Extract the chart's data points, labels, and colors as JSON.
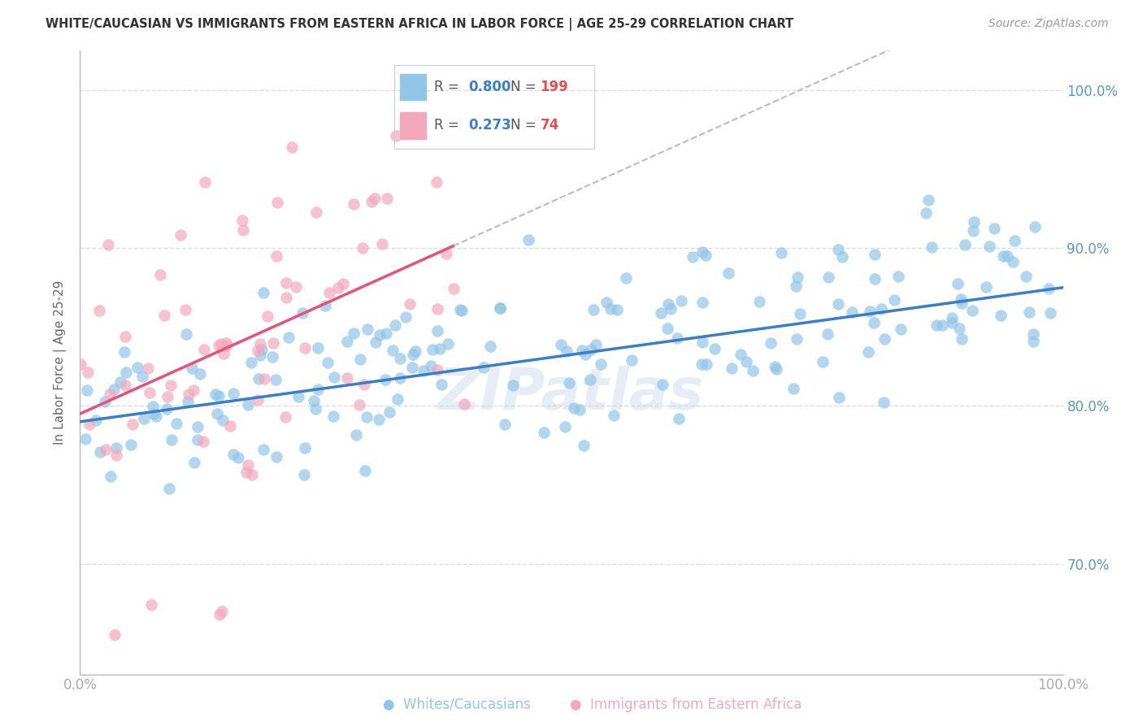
{
  "title": "WHITE/CAUCASIAN VS IMMIGRANTS FROM EASTERN AFRICA IN LABOR FORCE | AGE 25-29 CORRELATION CHART",
  "source": "Source: ZipAtlas.com",
  "ylabel": "In Labor Force | Age 25-29",
  "xlim": [
    0.0,
    1.0
  ],
  "ylim": [
    0.63,
    1.025
  ],
  "yticks": [
    0.7,
    0.8,
    0.9,
    1.0
  ],
  "ytick_labels": [
    "70.0%",
    "80.0%",
    "90.0%",
    "100.0%"
  ],
  "legend_blue_R": "0.800",
  "legend_blue_N": "199",
  "legend_pink_R": "0.273",
  "legend_pink_N": "74",
  "blue_color": "#92C5E8",
  "pink_color": "#F4A8BC",
  "blue_line_color": "#3A7DC9",
  "pink_line_color": "#E8507A",
  "dash_color": "#BBBBBB",
  "watermark": "ZIPatlas",
  "background_color": "#FFFFFF",
  "grid_color": "#DDDDDD",
  "blue_scatter_seed": 42,
  "pink_scatter_seed": 7,
  "title_color": "#333333",
  "source_color": "#999999",
  "axis_color": "#AAAAAA",
  "ylabel_color": "#666666",
  "right_tick_color": "#5599CC"
}
